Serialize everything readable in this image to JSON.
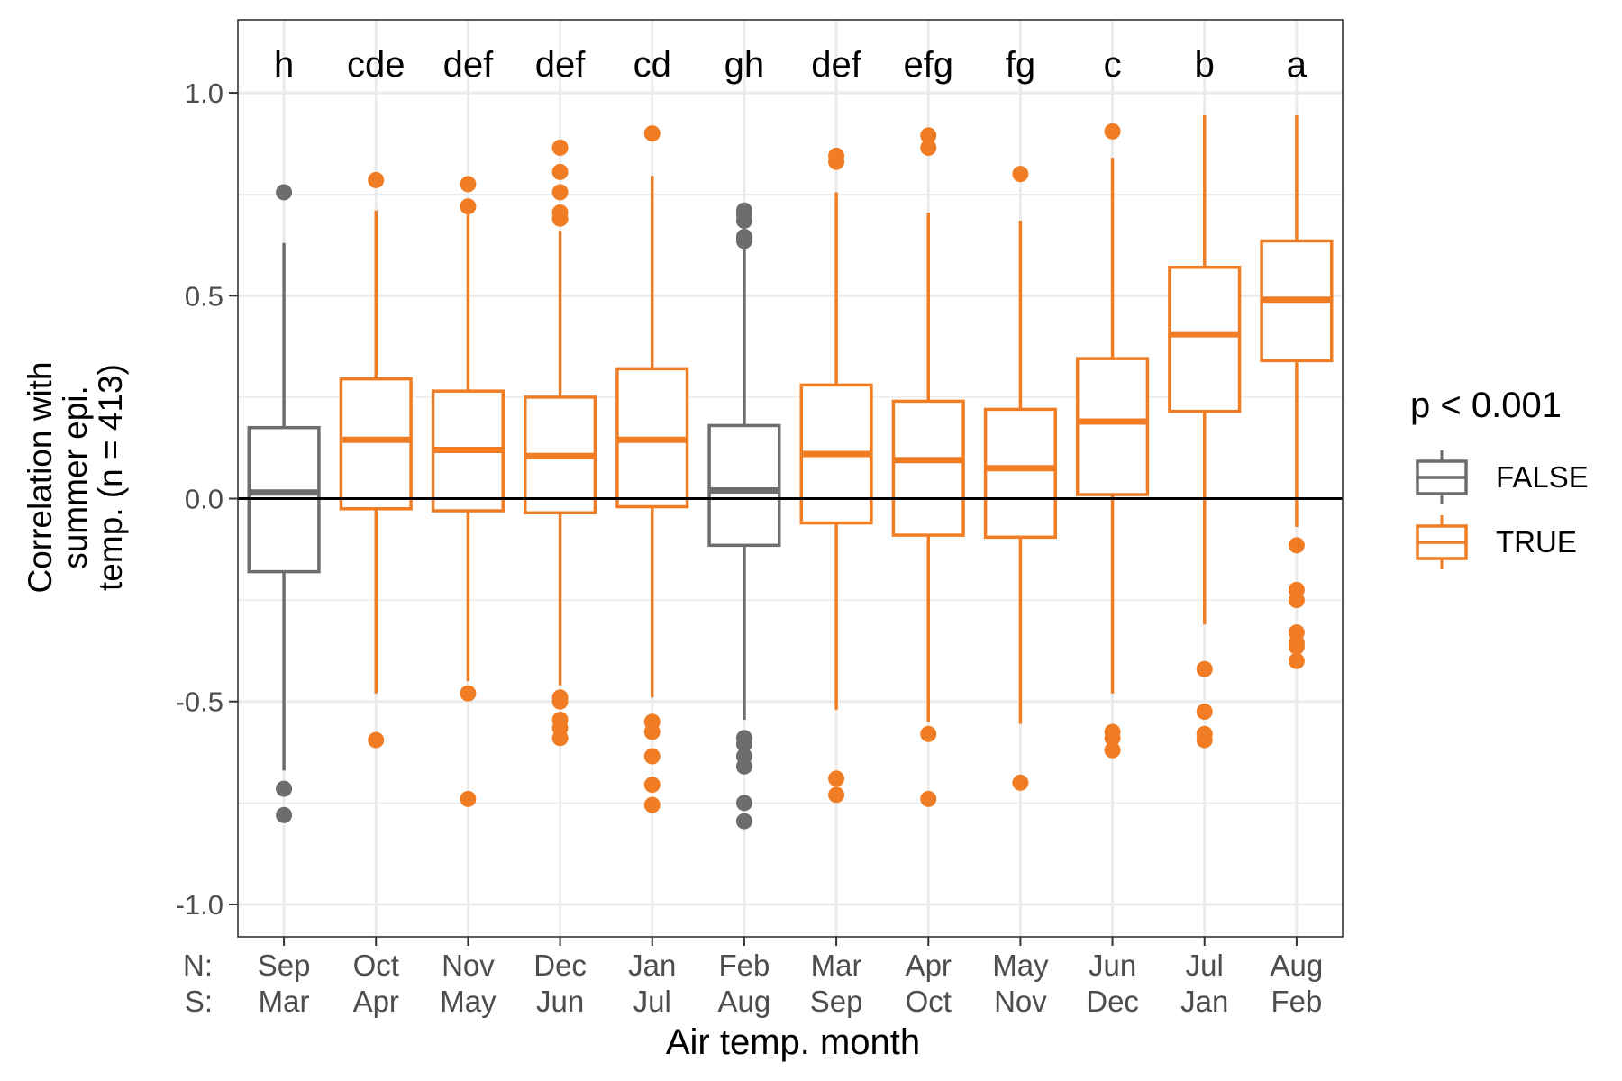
{
  "chart_data": {
    "type": "box",
    "ylabel": "Correlation with summer epi. temp. (n = 413)",
    "ylabel_lines": [
      "Correlation with",
      "summer epi.",
      "temp. (n = 413)"
    ],
    "xlabel": "Air temp. month",
    "row_labels": [
      "N:",
      "S:"
    ],
    "ylim": [
      -1.08,
      1.18
    ],
    "yticks": [
      1.0,
      0.5,
      0.0,
      -0.5,
      -1.0
    ],
    "ytick_labels": [
      "1.0",
      "0.5",
      "0.0",
      "-0.5",
      "-1.0"
    ],
    "grid": true,
    "reference_line_y": 0,
    "legend": {
      "title": "p < 0.001",
      "placement": "right",
      "entries": [
        {
          "label": "FALSE",
          "color": "#6d6d6d"
        },
        {
          "label": "TRUE",
          "color": "#f07d24"
        }
      ]
    },
    "groups": [
      {
        "n": "Sep",
        "s": "Mar",
        "letter": "h",
        "sig": "FALSE",
        "q1": -0.18,
        "median": 0.015,
        "q3": 0.175,
        "whisker_low": -0.67,
        "whisker_high": 0.63,
        "outliers": [
          0.755,
          -0.715,
          -0.78
        ]
      },
      {
        "n": "Oct",
        "s": "Apr",
        "letter": "cde",
        "sig": "TRUE",
        "q1": -0.025,
        "median": 0.145,
        "q3": 0.295,
        "whisker_low": -0.48,
        "whisker_high": 0.71,
        "outliers": [
          0.785,
          -0.595
        ]
      },
      {
        "n": "Nov",
        "s": "May",
        "letter": "def",
        "sig": "TRUE",
        "q1": -0.03,
        "median": 0.12,
        "q3": 0.265,
        "whisker_low": -0.45,
        "whisker_high": 0.7,
        "outliers": [
          0.775,
          0.72,
          -0.48,
          -0.74
        ]
      },
      {
        "n": "Dec",
        "s": "Jun",
        "letter": "def",
        "sig": "TRUE",
        "q1": -0.035,
        "median": 0.105,
        "q3": 0.25,
        "whisker_low": -0.46,
        "whisker_high": 0.66,
        "outliers": [
          0.865,
          0.805,
          0.755,
          0.705,
          0.69,
          -0.49,
          -0.5,
          -0.545,
          -0.565,
          -0.59
        ]
      },
      {
        "n": "Jan",
        "s": "Jul",
        "letter": "cd",
        "sig": "TRUE",
        "q1": -0.02,
        "median": 0.145,
        "q3": 0.32,
        "whisker_low": -0.49,
        "whisker_high": 0.795,
        "outliers": [
          0.9,
          -0.55,
          -0.575,
          -0.635,
          -0.705,
          -0.755
        ]
      },
      {
        "n": "Feb",
        "s": "Aug",
        "letter": "gh",
        "sig": "FALSE",
        "q1": -0.115,
        "median": 0.02,
        "q3": 0.18,
        "whisker_low": -0.545,
        "whisker_high": 0.63,
        "outliers": [
          0.71,
          0.7,
          0.685,
          0.645,
          0.635,
          -0.59,
          -0.605,
          -0.635,
          -0.66,
          -0.75,
          -0.795
        ]
      },
      {
        "n": "Mar",
        "s": "Sep",
        "letter": "def",
        "sig": "TRUE",
        "q1": -0.06,
        "median": 0.11,
        "q3": 0.28,
        "whisker_low": -0.52,
        "whisker_high": 0.755,
        "outliers": [
          0.845,
          0.83,
          -0.69,
          -0.73
        ]
      },
      {
        "n": "Apr",
        "s": "Oct",
        "letter": "efg",
        "sig": "TRUE",
        "q1": -0.09,
        "median": 0.095,
        "q3": 0.24,
        "whisker_low": -0.55,
        "whisker_high": 0.705,
        "outliers": [
          0.895,
          0.865,
          -0.58,
          -0.74
        ]
      },
      {
        "n": "May",
        "s": "Nov",
        "letter": "fg",
        "sig": "TRUE",
        "q1": -0.095,
        "median": 0.075,
        "q3": 0.22,
        "whisker_low": -0.555,
        "whisker_high": 0.685,
        "outliers": [
          0.8,
          -0.7
        ]
      },
      {
        "n": "Jun",
        "s": "Dec",
        "letter": "c",
        "sig": "TRUE",
        "q1": 0.01,
        "median": 0.19,
        "q3": 0.345,
        "whisker_low": -0.48,
        "whisker_high": 0.84,
        "outliers": [
          0.905,
          -0.575,
          -0.59,
          -0.62
        ]
      },
      {
        "n": "Jul",
        "s": "Jan",
        "letter": "b",
        "sig": "TRUE",
        "q1": 0.215,
        "median": 0.405,
        "q3": 0.57,
        "whisker_low": -0.31,
        "whisker_high": 0.945,
        "outliers": [
          -0.42,
          -0.525,
          -0.58,
          -0.595
        ]
      },
      {
        "n": "Aug",
        "s": "Feb",
        "letter": "a",
        "sig": "TRUE",
        "q1": 0.34,
        "median": 0.49,
        "q3": 0.635,
        "whisker_low": -0.07,
        "whisker_high": 0.945,
        "outliers": [
          -0.115,
          -0.225,
          -0.25,
          -0.33,
          -0.355,
          -0.365,
          -0.4
        ]
      }
    ]
  }
}
